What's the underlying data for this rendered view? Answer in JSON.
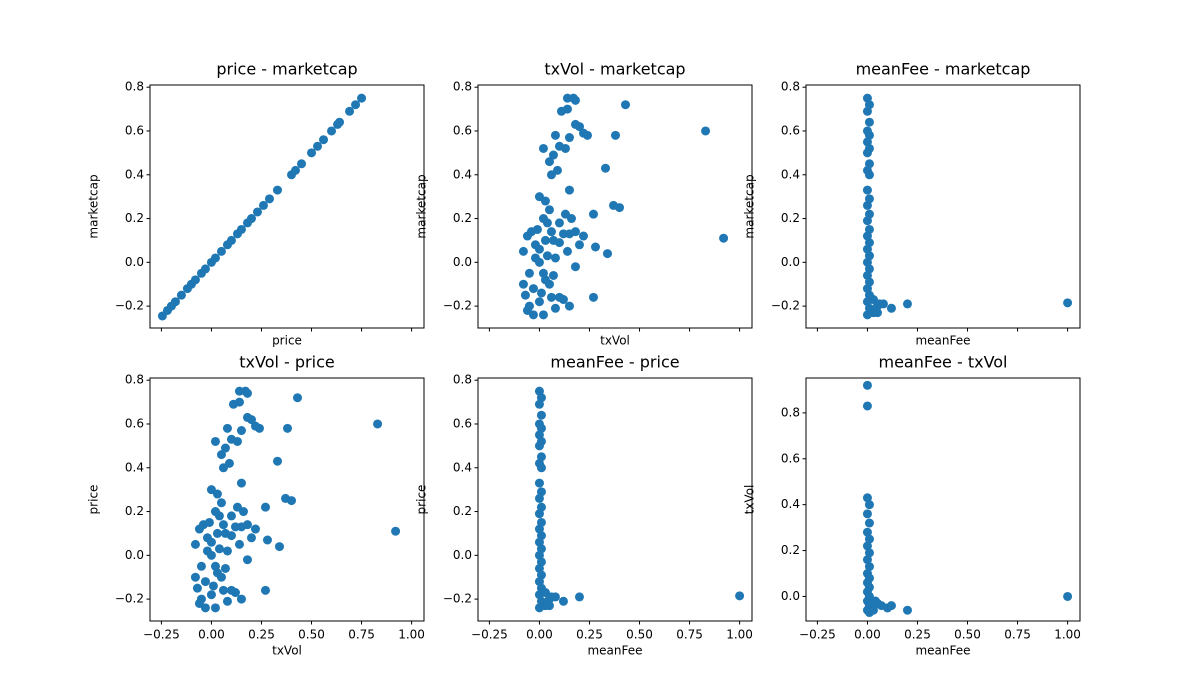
{
  "chart_data": [
    {
      "type": "scatter",
      "title": "price - marketcap",
      "xlabel": "price",
      "ylabel": "marketcap",
      "color": "#1f77b4",
      "grid": false,
      "x": [
        -0.245,
        -0.22,
        -0.2,
        -0.18,
        -0.15,
        -0.12,
        -0.1,
        -0.08,
        -0.05,
        -0.03,
        0.0,
        0.02,
        0.05,
        0.08,
        0.1,
        0.13,
        0.15,
        0.18,
        0.2,
        0.23,
        0.26,
        0.29,
        0.33,
        0.4,
        0.42,
        0.45,
        0.5,
        0.53,
        0.56,
        0.6,
        0.63,
        0.64,
        0.69,
        0.72,
        0.75
      ],
      "values": [
        -0.245,
        -0.22,
        -0.2,
        -0.18,
        -0.15,
        -0.12,
        -0.1,
        -0.08,
        -0.05,
        -0.03,
        0.0,
        0.02,
        0.05,
        0.08,
        0.1,
        0.13,
        0.15,
        0.18,
        0.2,
        0.23,
        0.26,
        0.29,
        0.33,
        0.4,
        0.42,
        0.45,
        0.5,
        0.53,
        0.56,
        0.6,
        0.63,
        0.64,
        0.69,
        0.72,
        0.75
      ],
      "xlim": [
        -0.307,
        1.062
      ],
      "ylim": [
        -0.3,
        0.81
      ],
      "xticks": [
        -0.25,
        0,
        0.25,
        0.5,
        0.75,
        1
      ],
      "yticks": [
        {
          "value": -0.2,
          "label": "−0.2"
        },
        {
          "value": 0,
          "label": "0.0"
        },
        0.2,
        0.4,
        0.6,
        0.8
      ]
    },
    {
      "type": "scatter",
      "title": "txVol - marketcap",
      "xlabel": "txVol",
      "ylabel": "marketcap",
      "color": "#1f77b4",
      "grid": false,
      "x": [
        0.83,
        0.92,
        0.43,
        0.38,
        0.4,
        0.37,
        0.33,
        0.28,
        0.27,
        0.34,
        0.27,
        0.24,
        0.22,
        0.2,
        0.18,
        0.17,
        0.18,
        0.14,
        0.14,
        0.15,
        0.13,
        0.1,
        0.08,
        0.02,
        0.05,
        0.07,
        0.06,
        0.09,
        0.11,
        0.15,
        0.16,
        0.15,
        0.18,
        0.13,
        0.1,
        0.07,
        0.05,
        0.03,
        0.0,
        0.02,
        0.12,
        0.15,
        0.1,
        0.08,
        0.02,
        -0.03,
        -0.05,
        -0.07,
        -0.08,
        -0.08,
        -0.06,
        -0.04,
        -0.02,
        0.0,
        0.02,
        0.04,
        -0.05,
        -0.03,
        0.0,
        0.05,
        0.08,
        0.1,
        0.06,
        -0.01,
        0.03,
        0.12,
        0.2,
        0.18,
        0.14,
        0.06,
        0.22,
        -0.06,
        0.01,
        0.03,
        0.07,
        -0.02,
        0.0,
        0.04
      ],
      "values": [
        0.6,
        0.11,
        0.72,
        0.58,
        0.25,
        0.26,
        0.43,
        0.07,
        -0.16,
        0.04,
        0.22,
        0.58,
        0.59,
        0.62,
        0.63,
        0.75,
        0.74,
        0.75,
        0.7,
        0.57,
        0.52,
        0.53,
        0.58,
        0.52,
        0.46,
        0.49,
        0.4,
        0.42,
        0.69,
        0.33,
        0.2,
        0.13,
        0.14,
        0.22,
        0.18,
        0.1,
        0.24,
        0.28,
        0.3,
        0.2,
        -0.17,
        -0.2,
        -0.16,
        -0.21,
        -0.24,
        -0.24,
        -0.2,
        -0.15,
        -0.1,
        0.05,
        0.12,
        0.14,
        0.08,
        0.0,
        -0.05,
        0.03,
        -0.05,
        -0.12,
        -0.18,
        -0.1,
        0.02,
        0.09,
        0.14,
        0.15,
        0.1,
        0.13,
        0.08,
        -0.02,
        0.05,
        -0.16,
        0.12,
        -0.22,
        -0.14,
        -0.08,
        -0.06,
        0.02,
        0.06,
        0.18
      ],
      "xlim": [
        -0.307,
        1.062
      ],
      "ylim": [
        -0.3,
        0.81
      ],
      "xticks": [
        -0.25,
        0,
        0.25,
        0.5,
        0.75,
        1
      ],
      "yticks": [
        {
          "value": -0.2,
          "label": "−0.2"
        },
        {
          "value": 0,
          "label": "0.0"
        },
        0.2,
        0.4,
        0.6,
        0.8
      ]
    },
    {
      "type": "scatter",
      "title": "meanFee - marketcap",
      "xlabel": "meanFee",
      "ylabel": "marketcap",
      "color": "#1f77b4",
      "grid": false,
      "x": [
        0,
        0.01,
        0,
        0.01,
        0,
        0.01,
        0,
        0.01,
        0,
        0.01,
        0,
        0.01,
        0,
        0.01,
        0,
        0.01,
        0,
        0.01,
        0,
        0.01,
        0,
        0.01,
        0,
        0.01,
        0,
        0.01,
        0,
        0.01,
        0,
        0.01,
        0,
        0.03,
        0.05,
        0.06,
        0.08,
        0.12,
        0.2,
        1.0,
        0.03,
        0.05
      ],
      "values": [
        0.75,
        0.72,
        0.69,
        0.64,
        0.6,
        0.58,
        0.55,
        0.52,
        0.5,
        0.45,
        0.42,
        0.4,
        0.33,
        0.29,
        0.26,
        0.22,
        0.19,
        0.15,
        0.12,
        0.09,
        0.06,
        0.03,
        0.0,
        -0.03,
        -0.06,
        -0.09,
        -0.12,
        -0.15,
        -0.18,
        -0.21,
        -0.24,
        -0.17,
        -0.2,
        -0.19,
        -0.19,
        -0.21,
        -0.19,
        -0.185,
        -0.23,
        -0.23
      ],
      "xlim": [
        -0.307,
        1.062
      ],
      "ylim": [
        -0.3,
        0.81
      ],
      "xticks": [
        -0.25,
        0,
        0.25,
        0.5,
        0.75,
        1
      ],
      "yticks": [
        {
          "value": -0.2,
          "label": "−0.2"
        },
        {
          "value": 0,
          "label": "0.0"
        },
        0.2,
        0.4,
        0.6,
        0.8
      ]
    },
    {
      "type": "scatter",
      "title": "txVol - price",
      "xlabel": "txVol",
      "ylabel": "price",
      "color": "#1f77b4",
      "grid": false,
      "x": [
        0.83,
        0.92,
        0.43,
        0.38,
        0.4,
        0.37,
        0.33,
        0.28,
        0.27,
        0.34,
        0.27,
        0.24,
        0.22,
        0.2,
        0.18,
        0.17,
        0.18,
        0.14,
        0.14,
        0.15,
        0.13,
        0.1,
        0.08,
        0.02,
        0.05,
        0.07,
        0.06,
        0.09,
        0.11,
        0.15,
        0.16,
        0.15,
        0.18,
        0.13,
        0.1,
        0.07,
        0.05,
        0.03,
        0.0,
        0.02,
        0.12,
        0.15,
        0.1,
        0.08,
        0.02,
        -0.03,
        -0.05,
        -0.07,
        -0.08,
        -0.08,
        -0.06,
        -0.04,
        -0.02,
        0.0,
        0.02,
        0.04,
        -0.05,
        -0.03,
        0.0,
        0.05,
        0.08,
        0.1,
        0.06,
        -0.01,
        0.03,
        0.12,
        0.2,
        0.18,
        0.14,
        0.06,
        0.22,
        -0.06,
        0.01,
        0.03,
        0.07,
        -0.02,
        0.0,
        0.04
      ],
      "values": [
        0.6,
        0.11,
        0.72,
        0.58,
        0.25,
        0.26,
        0.43,
        0.07,
        -0.16,
        0.04,
        0.22,
        0.58,
        0.59,
        0.62,
        0.63,
        0.75,
        0.74,
        0.75,
        0.7,
        0.57,
        0.52,
        0.53,
        0.58,
        0.52,
        0.46,
        0.49,
        0.4,
        0.42,
        0.69,
        0.33,
        0.2,
        0.13,
        0.14,
        0.22,
        0.18,
        0.1,
        0.24,
        0.28,
        0.3,
        0.2,
        -0.17,
        -0.2,
        -0.16,
        -0.21,
        -0.24,
        -0.24,
        -0.2,
        -0.15,
        -0.1,
        0.05,
        0.12,
        0.14,
        0.08,
        0.0,
        -0.05,
        0.03,
        -0.05,
        -0.12,
        -0.18,
        -0.1,
        0.02,
        0.09,
        0.14,
        0.15,
        0.1,
        0.13,
        0.08,
        -0.02,
        0.05,
        -0.16,
        0.12,
        -0.22,
        -0.14,
        -0.08,
        -0.06,
        0.02,
        0.06,
        0.18
      ],
      "xlim": [
        -0.307,
        1.062
      ],
      "ylim": [
        -0.3,
        0.81
      ],
      "xticks": [
        {
          "value": -0.25,
          "label": "−0.25"
        },
        {
          "value": 0,
          "label": "0.00"
        },
        {
          "value": 0.25,
          "label": "0.25"
        },
        {
          "value": 0.5,
          "label": "0.50"
        },
        {
          "value": 0.75,
          "label": "0.75"
        },
        {
          "value": 1,
          "label": "1.00"
        }
      ],
      "yticks": [
        {
          "value": -0.2,
          "label": "−0.2"
        },
        {
          "value": 0,
          "label": "0.0"
        },
        0.2,
        0.4,
        0.6,
        0.8
      ]
    },
    {
      "type": "scatter",
      "title": "meanFee - price",
      "xlabel": "meanFee",
      "ylabel": "price",
      "color": "#1f77b4",
      "grid": false,
      "x": [
        0,
        0.01,
        0,
        0.01,
        0,
        0.01,
        0,
        0.01,
        0,
        0.01,
        0,
        0.01,
        0,
        0.01,
        0,
        0.01,
        0,
        0.01,
        0,
        0.01,
        0,
        0.01,
        0,
        0.01,
        0,
        0.01,
        0,
        0.01,
        0,
        0.01,
        0,
        0.03,
        0.05,
        0.06,
        0.08,
        0.12,
        0.2,
        1.0,
        0.03,
        0.05
      ],
      "values": [
        0.75,
        0.72,
        0.69,
        0.64,
        0.6,
        0.58,
        0.55,
        0.52,
        0.5,
        0.45,
        0.42,
        0.4,
        0.33,
        0.29,
        0.26,
        0.22,
        0.19,
        0.15,
        0.12,
        0.09,
        0.06,
        0.03,
        0.0,
        -0.03,
        -0.06,
        -0.09,
        -0.12,
        -0.15,
        -0.18,
        -0.21,
        -0.24,
        -0.17,
        -0.2,
        -0.19,
        -0.19,
        -0.21,
        -0.19,
        -0.185,
        -0.23,
        -0.23
      ],
      "xlim": [
        -0.307,
        1.062
      ],
      "ylim": [
        -0.3,
        0.81
      ],
      "xticks": [
        {
          "value": -0.25,
          "label": "−0.25"
        },
        {
          "value": 0,
          "label": "0.00"
        },
        {
          "value": 0.25,
          "label": "0.25"
        },
        {
          "value": 0.5,
          "label": "0.50"
        },
        {
          "value": 0.75,
          "label": "0.75"
        },
        {
          "value": 1,
          "label": "1.00"
        }
      ],
      "yticks": [
        {
          "value": -0.2,
          "label": "−0.2"
        },
        {
          "value": 0,
          "label": "0.0"
        },
        0.2,
        0.4,
        0.6,
        0.8
      ]
    },
    {
      "type": "scatter",
      "title": "meanFee - txVol",
      "xlabel": "meanFee",
      "ylabel": "txVol",
      "color": "#1f77b4",
      "grid": false,
      "x": [
        0,
        0,
        0,
        0.01,
        0,
        0.01,
        0,
        0.01,
        0,
        0.01,
        0,
        0.01,
        0,
        0.01,
        0,
        0.01,
        0,
        0.01,
        0,
        0.01,
        0,
        0.01,
        0.02,
        0.04,
        0.05,
        0.07,
        0.1,
        0.12,
        0.2,
        1.0,
        0.03
      ],
      "values": [
        0.92,
        0.83,
        0.43,
        0.4,
        0.36,
        0.32,
        0.28,
        0.25,
        0.22,
        0.19,
        0.16,
        0.13,
        0.1,
        0.08,
        0.06,
        0.04,
        0.02,
        0.0,
        -0.02,
        -0.04,
        -0.06,
        -0.07,
        -0.04,
        -0.02,
        -0.03,
        -0.04,
        -0.05,
        -0.04,
        -0.06,
        0.0,
        -0.06
      ],
      "xlim": [
        -0.307,
        1.062
      ],
      "ylim": [
        -0.107,
        0.952
      ],
      "xticks": [
        {
          "value": -0.25,
          "label": "−0.25"
        },
        {
          "value": 0,
          "label": "0.00"
        },
        {
          "value": 0.25,
          "label": "0.25"
        },
        {
          "value": 0.5,
          "label": "0.50"
        },
        {
          "value": 0.75,
          "label": "0.75"
        },
        {
          "value": 1,
          "label": "1.00"
        }
      ],
      "yticks": [
        {
          "value": 0,
          "label": "0.0"
        },
        0.2,
        0.4,
        0.6,
        0.8
      ]
    }
  ]
}
